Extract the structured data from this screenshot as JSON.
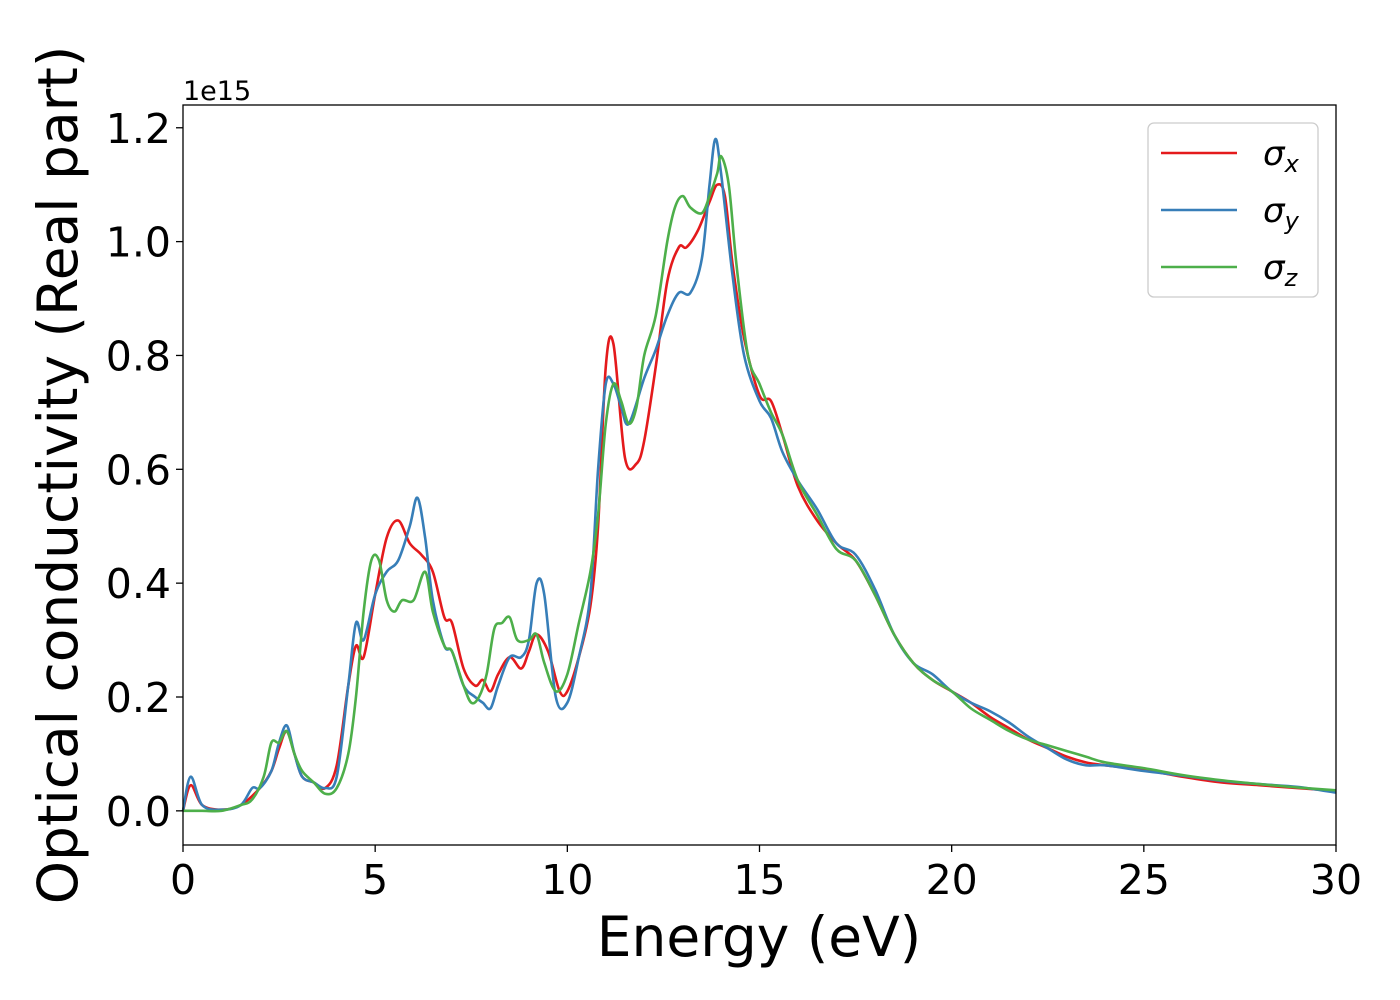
{
  "chart_data": {
    "type": "line",
    "xlabel": "Energy (eV)",
    "ylabel": "Optical conductivity (Real part)",
    "y_offset_text": "1e15",
    "xlim": [
      0,
      30
    ],
    "ylim": [
      -0.06,
      1.24
    ],
    "xticks": [
      0,
      5,
      10,
      15,
      20,
      25,
      30
    ],
    "xtick_labels": [
      "0",
      "5",
      "10",
      "15",
      "20",
      "25",
      "30"
    ],
    "yticks": [
      0.0,
      0.2,
      0.4,
      0.6,
      0.8,
      1.0,
      1.2
    ],
    "ytick_labels": [
      "0.0",
      "0.2",
      "0.4",
      "0.6",
      "0.8",
      "1.0",
      "1.2"
    ],
    "grid": false,
    "legend_position": "top-right",
    "series": [
      {
        "name": "σx",
        "symbol": "σ",
        "subscript": "x",
        "color": "#e41a1c",
        "x": [
          0,
          0.2,
          0.5,
          1.0,
          1.5,
          2.0,
          2.3,
          2.5,
          2.7,
          2.9,
          3.1,
          3.4,
          3.7,
          4.0,
          4.3,
          4.5,
          4.7,
          5.0,
          5.3,
          5.6,
          5.9,
          6.2,
          6.5,
          6.8,
          7.0,
          7.3,
          7.6,
          7.8,
          8.0,
          8.2,
          8.5,
          8.8,
          9.0,
          9.2,
          9.5,
          9.8,
          10.0,
          10.3,
          10.6,
          10.8,
          11.0,
          11.2,
          11.5,
          11.8,
          12.0,
          12.3,
          12.6,
          12.9,
          13.1,
          13.4,
          13.7,
          13.9,
          14.1,
          14.3,
          14.6,
          15.0,
          15.3,
          15.6,
          16.0,
          16.5,
          17.0,
          17.5,
          18.0,
          18.5,
          19.0,
          19.5,
          20.0,
          20.5,
          21.0,
          21.5,
          22.0,
          22.5,
          23.0,
          23.5,
          24.0,
          25.0,
          26.0,
          27.0,
          28.0,
          29.0,
          30.0
        ],
        "values": [
          0,
          0.045,
          0.01,
          0.002,
          0.01,
          0.04,
          0.07,
          0.11,
          0.14,
          0.1,
          0.06,
          0.05,
          0.04,
          0.08,
          0.22,
          0.29,
          0.27,
          0.38,
          0.48,
          0.51,
          0.47,
          0.45,
          0.42,
          0.34,
          0.33,
          0.25,
          0.22,
          0.23,
          0.21,
          0.24,
          0.27,
          0.25,
          0.28,
          0.31,
          0.28,
          0.21,
          0.21,
          0.27,
          0.36,
          0.5,
          0.78,
          0.82,
          0.62,
          0.61,
          0.65,
          0.78,
          0.93,
          0.99,
          0.99,
          1.02,
          1.07,
          1.1,
          1.08,
          0.96,
          0.83,
          0.73,
          0.72,
          0.66,
          0.57,
          0.51,
          0.47,
          0.44,
          0.38,
          0.31,
          0.26,
          0.23,
          0.21,
          0.19,
          0.165,
          0.145,
          0.125,
          0.11,
          0.095,
          0.085,
          0.08,
          0.072,
          0.06,
          0.05,
          0.045,
          0.04,
          0.035
        ]
      },
      {
        "name": "σy",
        "symbol": "σ",
        "subscript": "y",
        "color": "#377eb8",
        "x": [
          0,
          0.2,
          0.5,
          1.0,
          1.5,
          1.8,
          2.0,
          2.3,
          2.5,
          2.7,
          2.9,
          3.1,
          3.4,
          3.7,
          4.0,
          4.3,
          4.5,
          4.7,
          5.0,
          5.3,
          5.6,
          5.9,
          6.1,
          6.3,
          6.5,
          6.8,
          7.0,
          7.3,
          7.6,
          7.8,
          8.0,
          8.2,
          8.5,
          8.8,
          9.0,
          9.2,
          9.4,
          9.7,
          10.0,
          10.3,
          10.6,
          10.8,
          11.0,
          11.2,
          11.4,
          11.6,
          12.0,
          12.3,
          12.6,
          12.9,
          13.2,
          13.5,
          13.7,
          13.85,
          14.0,
          14.3,
          14.6,
          15.0,
          15.3,
          15.6,
          16.0,
          16.5,
          17.0,
          17.5,
          18.0,
          18.5,
          19.0,
          19.5,
          20.0,
          20.5,
          21.0,
          21.5,
          22.0,
          22.5,
          23.0,
          23.5,
          24.0,
          25.0,
          26.0,
          27.0,
          28.0,
          29.0,
          30.0
        ],
        "values": [
          0,
          0.06,
          0.01,
          0.002,
          0.01,
          0.04,
          0.04,
          0.07,
          0.12,
          0.15,
          0.1,
          0.06,
          0.05,
          0.04,
          0.06,
          0.22,
          0.33,
          0.3,
          0.38,
          0.42,
          0.44,
          0.5,
          0.55,
          0.48,
          0.37,
          0.29,
          0.28,
          0.22,
          0.2,
          0.19,
          0.18,
          0.22,
          0.27,
          0.27,
          0.3,
          0.4,
          0.38,
          0.2,
          0.19,
          0.27,
          0.38,
          0.6,
          0.75,
          0.75,
          0.71,
          0.68,
          0.76,
          0.81,
          0.87,
          0.91,
          0.91,
          0.97,
          1.1,
          1.18,
          1.12,
          0.94,
          0.8,
          0.72,
          0.69,
          0.63,
          0.58,
          0.53,
          0.47,
          0.45,
          0.39,
          0.31,
          0.26,
          0.24,
          0.21,
          0.19,
          0.175,
          0.155,
          0.13,
          0.11,
          0.09,
          0.08,
          0.08,
          0.07,
          0.062,
          0.053,
          0.047,
          0.042,
          0.032
        ]
      },
      {
        "name": "σz",
        "symbol": "σ",
        "subscript": "z",
        "color": "#4daf4a",
        "x": [
          0,
          0.5,
          1.0,
          1.5,
          1.8,
          2.1,
          2.3,
          2.5,
          2.7,
          2.9,
          3.1,
          3.4,
          3.7,
          4.0,
          4.3,
          4.5,
          4.7,
          4.9,
          5.1,
          5.3,
          5.5,
          5.7,
          6.0,
          6.3,
          6.5,
          6.8,
          7.0,
          7.3,
          7.5,
          7.7,
          7.9,
          8.1,
          8.3,
          8.5,
          8.7,
          9.0,
          9.2,
          9.4,
          9.7,
          10.0,
          10.3,
          10.6,
          10.8,
          11.0,
          11.2,
          11.4,
          11.6,
          11.8,
          12.0,
          12.3,
          12.6,
          12.8,
          13.0,
          13.2,
          13.5,
          13.7,
          13.9,
          14.0,
          14.2,
          14.4,
          14.7,
          15.0,
          15.3,
          15.6,
          16.0,
          16.5,
          17.0,
          17.5,
          18.0,
          18.5,
          19.0,
          19.5,
          20.0,
          20.5,
          21.0,
          21.5,
          22.0,
          22.5,
          23.0,
          23.5,
          24.0,
          25.0,
          26.0,
          27.0,
          28.0,
          29.0,
          30.0
        ],
        "values": [
          0,
          0,
          0,
          0.01,
          0.02,
          0.06,
          0.12,
          0.12,
          0.14,
          0.1,
          0.07,
          0.05,
          0.03,
          0.04,
          0.1,
          0.2,
          0.35,
          0.44,
          0.44,
          0.37,
          0.35,
          0.37,
          0.37,
          0.42,
          0.35,
          0.29,
          0.28,
          0.22,
          0.19,
          0.2,
          0.24,
          0.32,
          0.33,
          0.34,
          0.3,
          0.3,
          0.31,
          0.26,
          0.21,
          0.24,
          0.33,
          0.42,
          0.52,
          0.68,
          0.75,
          0.72,
          0.68,
          0.71,
          0.8,
          0.87,
          1.0,
          1.06,
          1.08,
          1.06,
          1.05,
          1.08,
          1.12,
          1.15,
          1.1,
          0.96,
          0.8,
          0.75,
          0.7,
          0.66,
          0.58,
          0.52,
          0.46,
          0.44,
          0.38,
          0.31,
          0.26,
          0.23,
          0.21,
          0.18,
          0.16,
          0.14,
          0.125,
          0.115,
          0.105,
          0.095,
          0.085,
          0.075,
          0.063,
          0.054,
          0.047,
          0.041,
          0.036
        ]
      }
    ]
  }
}
